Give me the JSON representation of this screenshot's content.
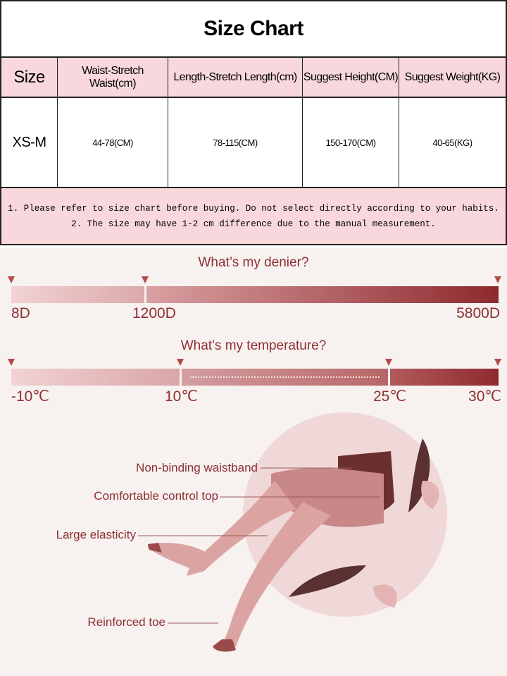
{
  "size_chart": {
    "title": "Size Chart",
    "headers": [
      "Size",
      "Waist-Stretch Waist(cm)",
      "Length-Stretch Length(cm)",
      "Suggest Height(CM)",
      "Suggest Weight(KG)"
    ],
    "rows": [
      [
        "XS-M",
        "44-78(CM)",
        "78-115(CM)",
        "150-170(CM)",
        "40-65(KG)"
      ]
    ],
    "notes": [
      "1. Please refer to size chart before buying. Do not select directly according to your habits.",
      "2. The size may have 1-2 cm difference due to the manual measurement."
    ]
  },
  "denier": {
    "title": "What’s my denier?",
    "labels": [
      "8D",
      "1200D",
      "5800D"
    ]
  },
  "temperature": {
    "title": "What’s my temperature?",
    "labels": [
      "-10℃",
      "10℃",
      "25℃",
      "30℃"
    ]
  },
  "features": [
    "Non-binding waistband",
    "Comfortable control top",
    "Large elasticity",
    "Reinforced toe"
  ],
  "colors": {
    "header_bg": "#f8d8dd",
    "accent": "#8d2f33",
    "bar_light": "#f0cfd0",
    "bar_dark": "#8e2a2e",
    "background": "#f7f1f0"
  }
}
